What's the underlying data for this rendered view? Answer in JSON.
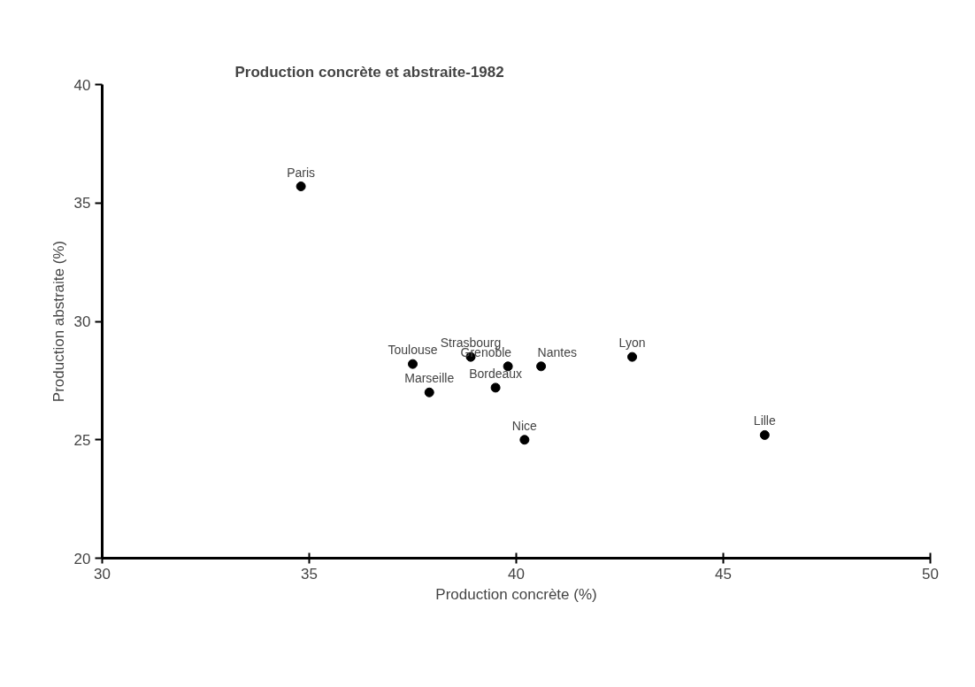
{
  "chart_data": {
    "type": "scatter",
    "title": "Production concrète et abstraite-1982",
    "xlabel": "Production concrète (%)",
    "ylabel": "Production abstraite (%)",
    "x": [
      34.8,
      37.5,
      38.9,
      39.8,
      40.6,
      42.8,
      37.9,
      39.5,
      40.2,
      46.0
    ],
    "series": [
      {
        "color": "#000000",
        "values": [
          35.7,
          28.2,
          28.5,
          28.1,
          28.1,
          28.5,
          27.0,
          27.2,
          25.0,
          25.2
        ]
      }
    ],
    "annotations": [
      {
        "text": "Paris",
        "x": 34.8,
        "y": 35.7
      },
      {
        "text": "Toulouse",
        "x": 37.5,
        "y": 28.2
      },
      {
        "text": "Strasbourg",
        "x": 38.9,
        "y": 28.5
      },
      {
        "text": "Grenoble",
        "x": 39.8,
        "y": 28.1
      },
      {
        "text": "Nantes",
        "x": 40.6,
        "y": 28.1
      },
      {
        "text": "Lyon",
        "x": 42.8,
        "y": 28.5
      },
      {
        "text": "Marseille",
        "x": 37.9,
        "y": 27.0
      },
      {
        "text": "Bordeaux",
        "x": 39.5,
        "y": 27.2
      },
      {
        "text": "Nice",
        "x": 40.2,
        "y": 25.0
      },
      {
        "text": "Lille",
        "x": 46.0,
        "y": 25.2
      }
    ],
    "xlim": [
      30,
      50
    ],
    "ylim": [
      20,
      40
    ],
    "xticks": [
      30,
      35,
      40,
      45,
      50
    ],
    "yticks": [
      20,
      25,
      30,
      35,
      40
    ],
    "grid": false,
    "marker": "circle"
  }
}
